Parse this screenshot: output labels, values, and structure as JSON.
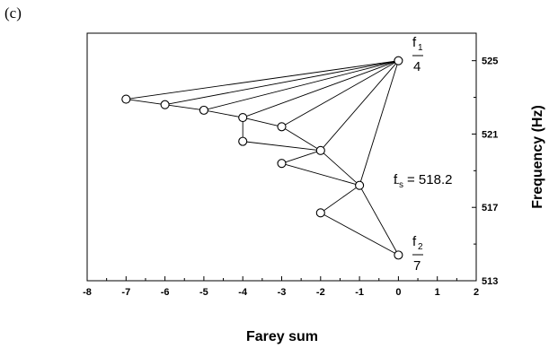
{
  "chart_data": {
    "type": "scatter",
    "panel_label": "(c)",
    "xlabel": "Farey sum",
    "ylabel": "Frequency (Hz)",
    "xlim": [
      -8,
      2
    ],
    "ylim": [
      513,
      526.5
    ],
    "x_ticks": [
      "-8",
      "-7",
      "-6",
      "-5",
      "-4",
      "-3",
      "-2",
      "-1",
      "0",
      "1",
      "2"
    ],
    "y_ticks": [
      "513",
      "517",
      "521",
      "525"
    ],
    "points": [
      {
        "x": 0,
        "y": 525.0
      },
      {
        "x": -7,
        "y": 522.9
      },
      {
        "x": -6,
        "y": 522.6
      },
      {
        "x": -5,
        "y": 522.3
      },
      {
        "x": -4,
        "y": 521.9
      },
      {
        "x": -3,
        "y": 521.4
      },
      {
        "x": -4,
        "y": 520.6
      },
      {
        "x": -2,
        "y": 520.1
      },
      {
        "x": -3,
        "y": 519.4
      },
      {
        "x": -1,
        "y": 518.2
      },
      {
        "x": -2,
        "y": 516.7
      },
      {
        "x": 0,
        "y": 514.4
      }
    ],
    "edges": [
      [
        0,
        1
      ],
      [
        0,
        2
      ],
      [
        0,
        3
      ],
      [
        0,
        4
      ],
      [
        0,
        5
      ],
      [
        0,
        7
      ],
      [
        0,
        9
      ],
      [
        1,
        2
      ],
      [
        2,
        3
      ],
      [
        3,
        4
      ],
      [
        4,
        5
      ],
      [
        5,
        7
      ],
      [
        7,
        9
      ],
      [
        6,
        4
      ],
      [
        6,
        7
      ],
      [
        8,
        7
      ],
      [
        8,
        9
      ],
      [
        9,
        11
      ],
      [
        10,
        9
      ],
      [
        10,
        11
      ]
    ],
    "annotations": {
      "f1_label": "f",
      "f1_sub": "1",
      "f1_fraction": "4",
      "fs_label": "f",
      "fs_sub": "s",
      "fs_value": "= 518.2",
      "f2_label": "f",
      "f2_sub": "2",
      "f2_fraction": "7"
    }
  }
}
